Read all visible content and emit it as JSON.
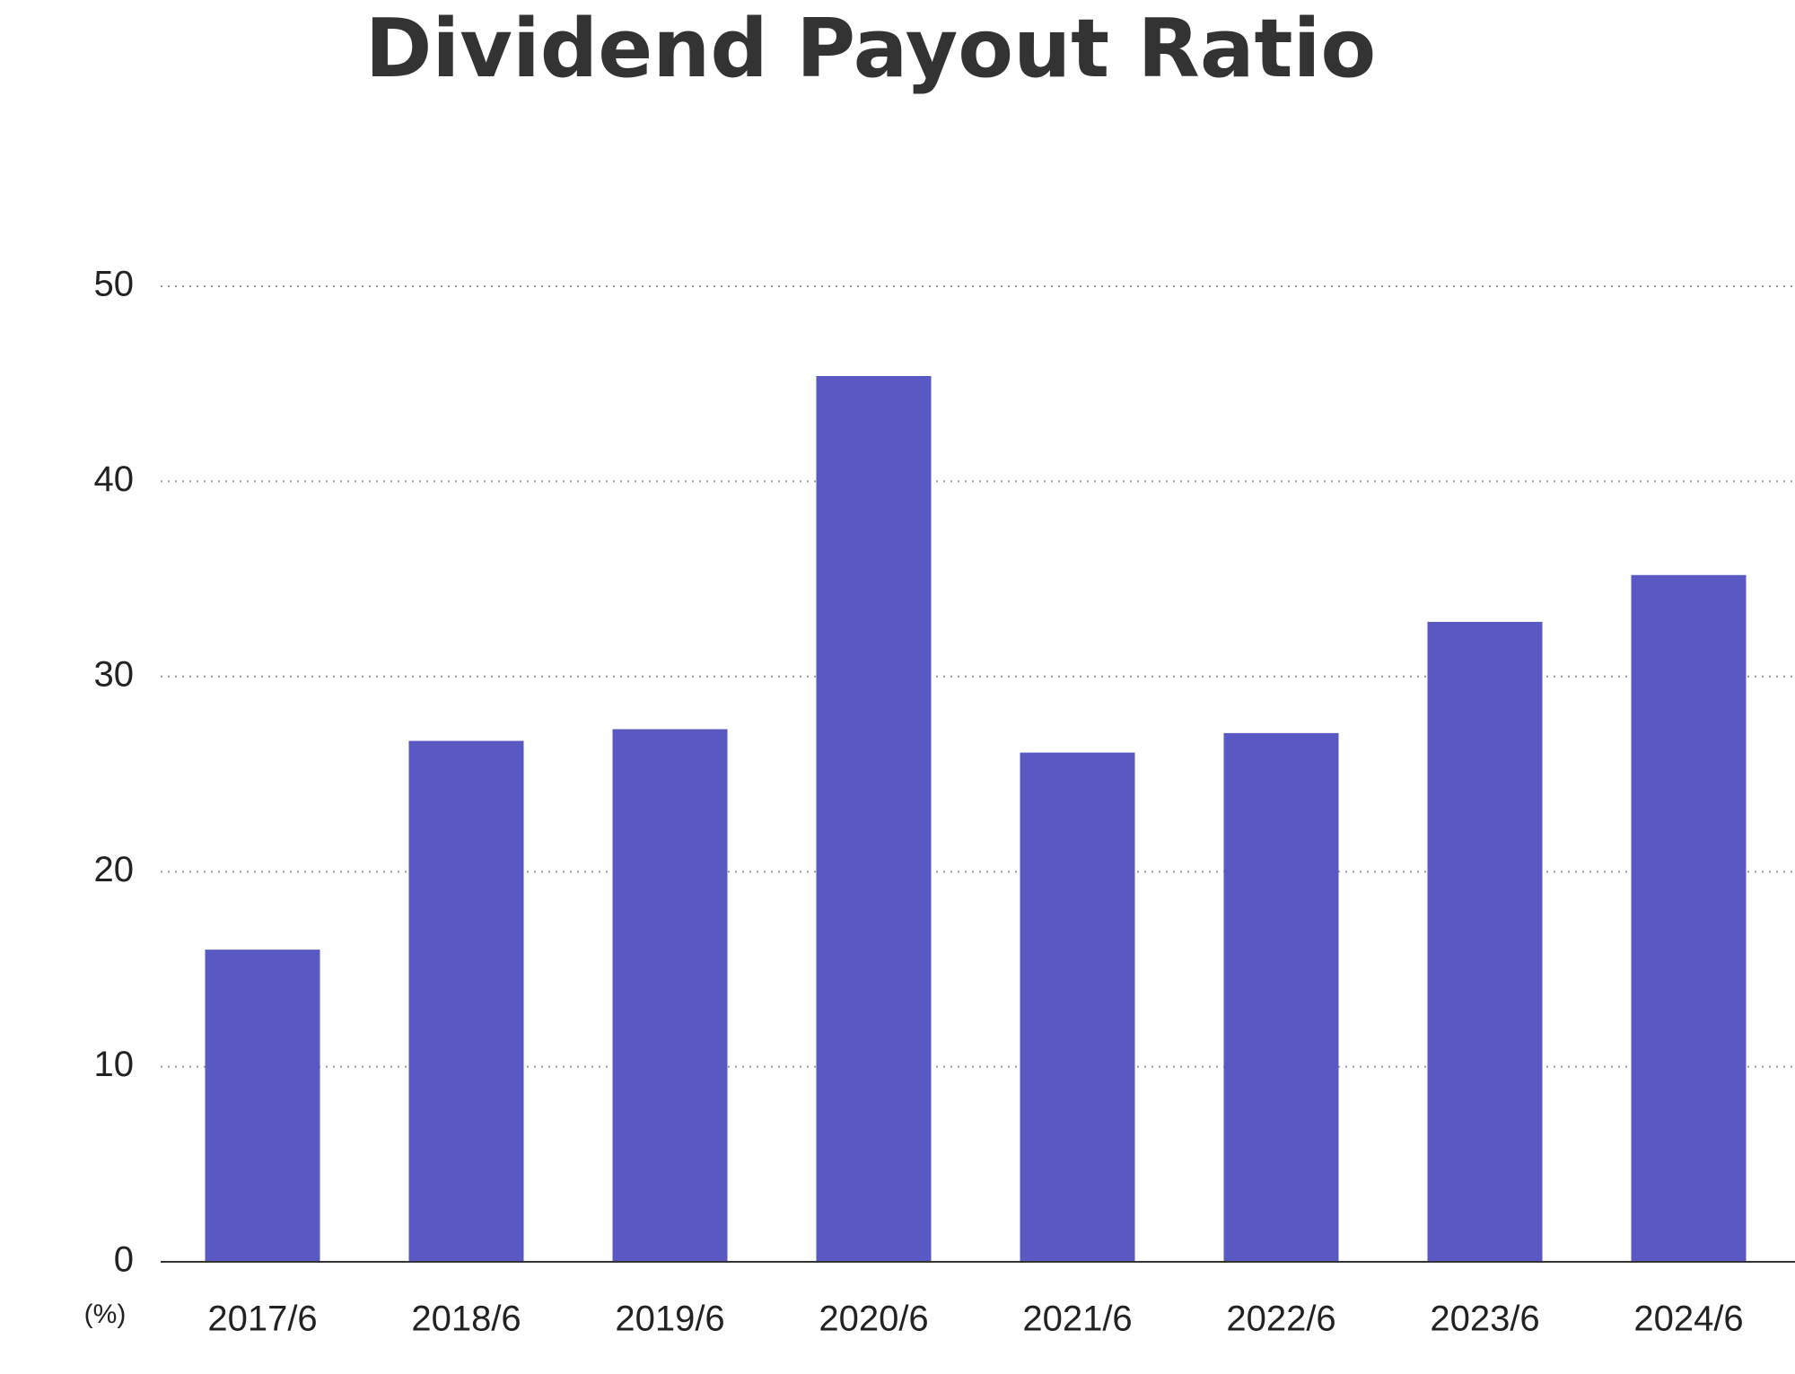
{
  "chart_data": {
    "type": "bar",
    "title": "Dividend Payout Ratio",
    "y_label": "(%)",
    "categories": [
      "2017/6",
      "2018/6",
      "2019/6",
      "2020/6",
      "2021/6",
      "2022/6",
      "2023/6",
      "2024/6"
    ],
    "values": [
      16.0,
      26.7,
      27.3,
      45.4,
      26.1,
      27.1,
      32.8,
      35.2
    ],
    "color": "#5a58c2",
    "ylim": [
      0,
      50
    ],
    "yticks": [
      0,
      10,
      20,
      30,
      40,
      50
    ],
    "grid": true
  }
}
